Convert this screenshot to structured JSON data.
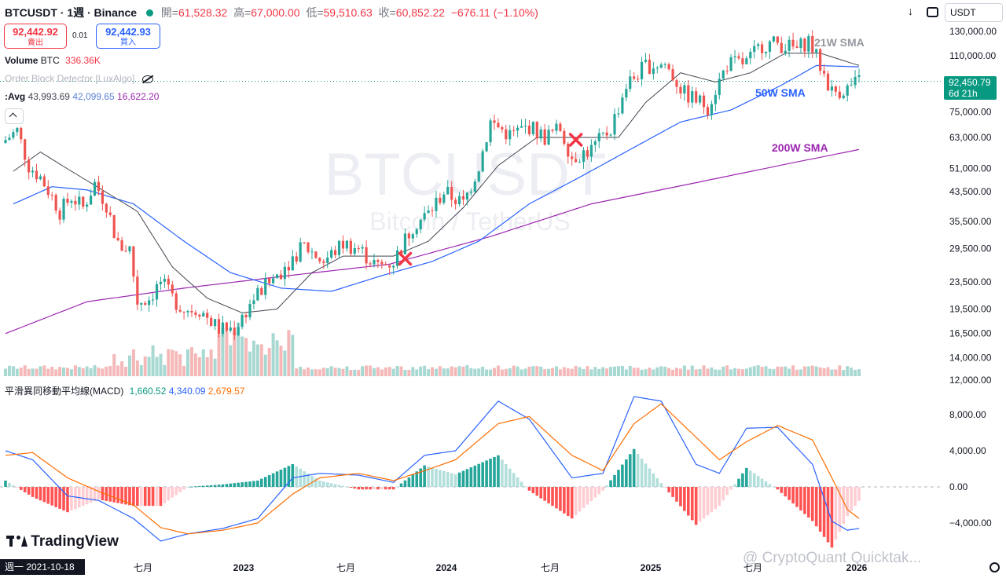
{
  "header": {
    "symbol_line": "BTCUSDT · 1週 · Binance",
    "open_label": "開=",
    "open_value": "61,528.32",
    "high_label": "高=",
    "high_value": "67,000.00",
    "low_label": "低=",
    "low_value": "59,510.63",
    "close_label": "收=",
    "close_value": "60,852.22",
    "change": "−676.11 (−1.10%)",
    "sell_price": "92,442.92",
    "sell_label": "賣出",
    "spread": "0.01",
    "buy_price": "92,442.93",
    "buy_label": "買入",
    "currency": "USDT"
  },
  "legend": {
    "volume_label": "Volume",
    "volume_unit": "BTC",
    "volume_value": "336.36K",
    "indicator_label": "Order Block Detector [LuxAlgo]",
    "avg_label": ":Avg",
    "avg_1": "43,993.69",
    "avg_2": "42,099.65",
    "avg_3": "16,622.20",
    "macd_label": "平滑異同移動平均線(MACD)",
    "macd_1": "1,660.52",
    "macd_2": "4,340.09",
    "macd_3": "2,679.57"
  },
  "watermark": {
    "symbol": "BTCUSDT",
    "name": "Bitcoin / TetherUS"
  },
  "annotations": {
    "sma21": "21W SMA",
    "sma50": "50W SMA",
    "sma200": "200W SMA"
  },
  "price_tag": {
    "value": "92,450.79",
    "countdown": "6d 21h"
  },
  "branding": {
    "logo": "TradingView",
    "credit": "@ CryptoQuant Quicktak..."
  },
  "cursor_date": "週一 2021-10-18",
  "colors": {
    "up": "#26a69a",
    "down": "#ef5350",
    "sma21": "#434651",
    "sma50": "#2962ff",
    "sma200": "#9c27b0",
    "macd": "#2962ff",
    "signal": "#ff6d00"
  },
  "chart_data": {
    "type": "candlestick",
    "interval": "1W",
    "y_scale": "log",
    "price_axis_labels": [
      "130,000.00",
      "110,000.00",
      "92,450.79",
      "75,000.00",
      "63,000.00",
      "51,000.00",
      "43,500.00",
      "35,500.00",
      "29,500.00",
      "23,500.00",
      "19,500.00",
      "16,500.00",
      "14,000.00",
      "12,000.00"
    ],
    "macd_axis_labels": [
      "8,000.00",
      "4,000.00",
      "0.00",
      "−4,000.00"
    ],
    "time_axis_labels": [
      "七月",
      "2023",
      "七月",
      "2024",
      "七月",
      "2025",
      "七月",
      "2026"
    ],
    "price_path": [
      [
        "2021-10-18",
        62000
      ],
      [
        "2021-11-08",
        66000
      ],
      [
        "2021-11-29",
        52000
      ],
      [
        "2021-12-20",
        48000
      ],
      [
        "2022-01-10",
        42000
      ],
      [
        "2022-01-24",
        38000
      ],
      [
        "2022-02-14",
        42000
      ],
      [
        "2022-03-07",
        39000
      ],
      [
        "2022-03-28",
        46000
      ],
      [
        "2022-04-18",
        40000
      ],
      [
        "2022-05-09",
        30000
      ],
      [
        "2022-05-30",
        29500
      ],
      [
        "2022-06-13",
        20500
      ],
      [
        "2022-07-04",
        21000
      ],
      [
        "2022-07-25",
        23500
      ],
      [
        "2022-08-15",
        21000
      ],
      [
        "2022-09-05",
        19500
      ],
      [
        "2022-10-03",
        19500
      ],
      [
        "2022-11-07",
        17000
      ],
      [
        "2022-12-05",
        17000
      ],
      [
        "2023-01-09",
        21000
      ],
      [
        "2023-02-13",
        24000
      ],
      [
        "2023-03-13",
        27000
      ],
      [
        "2023-04-10",
        30000
      ],
      [
        "2023-05-15",
        27000
      ],
      [
        "2023-06-19",
        30500
      ],
      [
        "2023-07-17",
        29500
      ],
      [
        "2023-08-21",
        26000
      ],
      [
        "2023-09-18",
        27000
      ],
      [
        "2023-10-23",
        34500
      ],
      [
        "2023-11-20",
        37500
      ],
      [
        "2023-12-18",
        43500
      ],
      [
        "2024-01-22",
        40000
      ],
      [
        "2024-02-19",
        52000
      ],
      [
        "2024-03-11",
        70000
      ],
      [
        "2024-04-15",
        64000
      ],
      [
        "2024-05-20",
        68000
      ],
      [
        "2024-06-17",
        63000
      ],
      [
        "2024-07-15",
        67000
      ],
      [
        "2024-08-05",
        55000
      ],
      [
        "2024-09-09",
        58000
      ],
      [
        "2024-10-14",
        67000
      ],
      [
        "2024-11-11",
        90000
      ],
      [
        "2024-12-16",
        103000
      ],
      [
        "2025-01-20",
        104000
      ],
      [
        "2025-02-24",
        85000
      ],
      [
        "2025-04-07",
        78000
      ],
      [
        "2025-05-12",
        104000
      ],
      [
        "2025-06-16",
        105000
      ],
      [
        "2025-07-14",
        119000
      ],
      [
        "2025-08-11",
        120000
      ],
      [
        "2025-09-15",
        115000
      ],
      [
        "2025-10-06",
        123000
      ],
      [
        "2025-11-17",
        86000
      ],
      [
        "2025-12-15",
        88000
      ],
      [
        "2026-01-05",
        92450
      ]
    ],
    "sma_21w": [
      [
        "2021-11-01",
        50000
      ],
      [
        "2021-12-20",
        57000
      ],
      [
        "2022-02-14",
        50000
      ],
      [
        "2022-04-11",
        44000
      ],
      [
        "2022-06-13",
        38000
      ],
      [
        "2022-08-15",
        26000
      ],
      [
        "2022-10-17",
        21000
      ],
      [
        "2022-12-19",
        19000
      ],
      [
        "2023-02-20",
        19500
      ],
      [
        "2023-04-24",
        25000
      ],
      [
        "2023-06-19",
        28000
      ],
      [
        "2023-09-18",
        28000
      ],
      [
        "2023-11-20",
        31000
      ],
      [
        "2024-01-22",
        39000
      ],
      [
        "2024-03-25",
        52000
      ],
      [
        "2024-06-03",
        63000
      ],
      [
        "2024-08-19",
        63000
      ],
      [
        "2024-10-28",
        63000
      ],
      [
        "2024-12-16",
        80000
      ],
      [
        "2025-02-17",
        98000
      ],
      [
        "2025-04-21",
        92000
      ],
      [
        "2025-06-23",
        98000
      ],
      [
        "2025-08-25",
        112000
      ],
      [
        "2025-10-27",
        112000
      ],
      [
        "2026-01-05",
        103000
      ]
    ],
    "sma_50w": [
      [
        "2021-11-01",
        40000
      ],
      [
        "2022-01-10",
        45000
      ],
      [
        "2022-03-14",
        44000
      ],
      [
        "2022-06-06",
        40000
      ],
      [
        "2022-09-05",
        31000
      ],
      [
        "2022-11-28",
        25000
      ],
      [
        "2023-02-27",
        22500
      ],
      [
        "2023-05-29",
        22000
      ],
      [
        "2023-08-28",
        24500
      ],
      [
        "2023-11-27",
        27000
      ],
      [
        "2024-02-19",
        31000
      ],
      [
        "2024-05-20",
        40000
      ],
      [
        "2024-08-19",
        48000
      ],
      [
        "2024-11-18",
        58000
      ],
      [
        "2025-02-17",
        70000
      ],
      [
        "2025-05-19",
        76000
      ],
      [
        "2025-08-18",
        90000
      ],
      [
        "2025-10-20",
        103000
      ],
      [
        "2026-01-05",
        102000
      ]
    ],
    "sma_200w": [
      [
        "2021-10-18",
        16500
      ],
      [
        "2022-03-14",
        20500
      ],
      [
        "2022-09-05",
        22500
      ],
      [
        "2023-03-13",
        24500
      ],
      [
        "2023-09-11",
        26500
      ],
      [
        "2024-03-11",
        32000
      ],
      [
        "2024-09-09",
        40000
      ],
      [
        "2025-03-10",
        46000
      ],
      [
        "2025-09-08",
        53000
      ],
      [
        "2026-01-05",
        58000
      ]
    ],
    "macd_line": [
      [
        "2021-10-18",
        4000
      ],
      [
        "2021-12-06",
        3000
      ],
      [
        "2022-02-07",
        -1000
      ],
      [
        "2022-04-04",
        -1500
      ],
      [
        "2022-06-06",
        -3500
      ],
      [
        "2022-07-25",
        -6000
      ],
      [
        "2022-09-12",
        -5200
      ],
      [
        "2022-11-14",
        -4600
      ],
      [
        "2023-01-16",
        -3500
      ],
      [
        "2023-03-20",
        1000
      ],
      [
        "2023-05-08",
        1500
      ],
      [
        "2023-07-17",
        1300
      ],
      [
        "2023-09-18",
        500
      ],
      [
        "2023-11-13",
        3500
      ],
      [
        "2024-01-08",
        4000
      ],
      [
        "2024-03-25",
        9500
      ],
      [
        "2024-05-20",
        7500
      ],
      [
        "2024-08-05",
        1000
      ],
      [
        "2024-09-30",
        1500
      ],
      [
        "2024-11-25",
        10000
      ],
      [
        "2025-01-13",
        9500
      ],
      [
        "2025-03-17",
        2500
      ],
      [
        "2025-04-28",
        1500
      ],
      [
        "2025-06-16",
        6500
      ],
      [
        "2025-08-11",
        6600
      ],
      [
        "2025-10-13",
        2500
      ],
      [
        "2025-11-17",
        -3800
      ],
      [
        "2025-12-15",
        -4800
      ],
      [
        "2026-01-05",
        -4600
      ]
    ],
    "signal_line": [
      [
        "2021-10-18",
        3500
      ],
      [
        "2021-12-06",
        3800
      ],
      [
        "2022-02-07",
        1000
      ],
      [
        "2022-04-04",
        -500
      ],
      [
        "2022-06-06",
        -2000
      ],
      [
        "2022-07-25",
        -4500
      ],
      [
        "2022-09-12",
        -5200
      ],
      [
        "2022-11-14",
        -4800
      ],
      [
        "2023-01-16",
        -4000
      ],
      [
        "2023-03-20",
        -800
      ],
      [
        "2023-05-08",
        1000
      ],
      [
        "2023-07-17",
        1500
      ],
      [
        "2023-09-18",
        700
      ],
      [
        "2023-11-13",
        1800
      ],
      [
        "2024-01-08",
        3000
      ],
      [
        "2024-03-25",
        7000
      ],
      [
        "2024-05-20",
        7800
      ],
      [
        "2024-08-05",
        3500
      ],
      [
        "2024-09-30",
        1800
      ],
      [
        "2024-11-25",
        7000
      ],
      [
        "2025-01-13",
        9200
      ],
      [
        "2025-03-17",
        5500
      ],
      [
        "2025-04-28",
        3000
      ],
      [
        "2025-06-16",
        5000
      ],
      [
        "2025-08-11",
        6800
      ],
      [
        "2025-10-13",
        5200
      ],
      [
        "2025-11-17",
        1000
      ],
      [
        "2025-12-15",
        -2500
      ],
      [
        "2026-01-05",
        -3500
      ]
    ],
    "markers": [
      [
        "2023-10-09",
        27500
      ],
      [
        "2024-08-12",
        62000
      ]
    ]
  }
}
